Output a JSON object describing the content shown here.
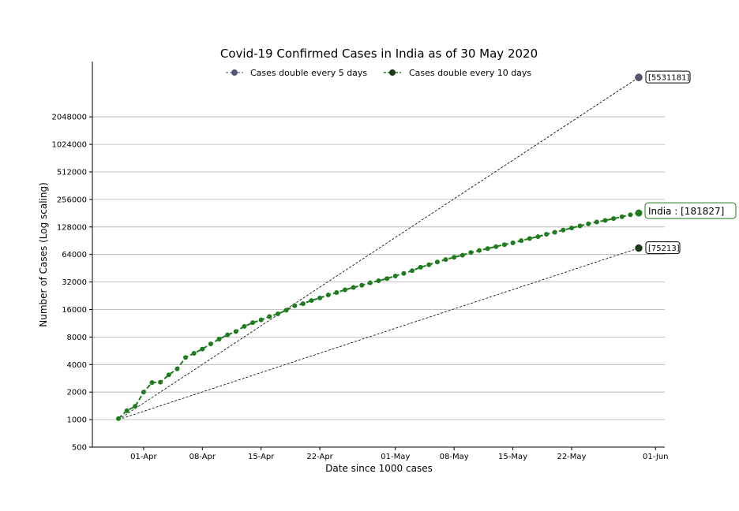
{
  "chart_data": {
    "type": "line",
    "title": "Covid-19 Confirmed Cases in India as of 30 May 2020",
    "xlabel": "Date since 1000 cases",
    "ylabel": "Number of Cases (Log scaling)",
    "y_scale": "log2",
    "ylim": [
      500,
      5531181
    ],
    "xlim": [
      "2020-03-24",
      "2020-06-01"
    ],
    "yticks": [
      "500",
      "1000",
      "2000",
      "4000",
      "8000",
      "16000",
      "32000",
      "64000",
      "128000",
      "256000",
      "512000",
      "1024000",
      "2048000"
    ],
    "xticks": [
      {
        "date": "2020-04-01",
        "label": "01-Apr"
      },
      {
        "date": "2020-04-08",
        "label": "08-Apr"
      },
      {
        "date": "2020-04-15",
        "label": "15-Apr"
      },
      {
        "date": "2020-04-22",
        "label": "22-Apr"
      },
      {
        "date": "2020-05-01",
        "label": "01-May"
      },
      {
        "date": "2020-05-08",
        "label": "08-May"
      },
      {
        "date": "2020-05-15",
        "label": "15-May"
      },
      {
        "date": "2020-05-22",
        "label": "22-May"
      },
      {
        "date": "2020-06-01",
        "label": "01-Jun"
      }
    ],
    "grid": "horizontal",
    "legend_position": "top-center",
    "series": [
      {
        "name": "Cases double every 5 days",
        "style": "dashed-reference",
        "color": "#555577",
        "points": [
          {
            "x": "2020-03-29",
            "y": 1000
          },
          {
            "x": "2020-05-30",
            "y": 5531181
          }
        ],
        "end_label": "[5531181]"
      },
      {
        "name": "Cases double every 10 days",
        "style": "dashed-reference",
        "color": "#1a3a1a",
        "points": [
          {
            "x": "2020-03-29",
            "y": 1000
          },
          {
            "x": "2020-05-30",
            "y": 75213
          }
        ],
        "end_label": "[75213]"
      },
      {
        "name": "India",
        "style": "dashed-markers",
        "color": "#1e7b1e",
        "end_label": "India :  [181827]",
        "x": [
          "2020-03-29",
          "2020-03-30",
          "2020-03-31",
          "2020-04-01",
          "2020-04-02",
          "2020-04-03",
          "2020-04-04",
          "2020-04-05",
          "2020-04-06",
          "2020-04-07",
          "2020-04-08",
          "2020-04-09",
          "2020-04-10",
          "2020-04-11",
          "2020-04-12",
          "2020-04-13",
          "2020-04-14",
          "2020-04-15",
          "2020-04-16",
          "2020-04-17",
          "2020-04-18",
          "2020-04-19",
          "2020-04-20",
          "2020-04-21",
          "2020-04-22",
          "2020-04-23",
          "2020-04-24",
          "2020-04-25",
          "2020-04-26",
          "2020-04-27",
          "2020-04-28",
          "2020-04-29",
          "2020-04-30",
          "2020-05-01",
          "2020-05-02",
          "2020-05-03",
          "2020-05-04",
          "2020-05-05",
          "2020-05-06",
          "2020-05-07",
          "2020-05-08",
          "2020-05-09",
          "2020-05-10",
          "2020-05-11",
          "2020-05-12",
          "2020-05-13",
          "2020-05-14",
          "2020-05-15",
          "2020-05-16",
          "2020-05-17",
          "2020-05-18",
          "2020-05-19",
          "2020-05-20",
          "2020-05-21",
          "2020-05-22",
          "2020-05-23",
          "2020-05-24",
          "2020-05-25",
          "2020-05-26",
          "2020-05-27",
          "2020-05-28",
          "2020-05-29",
          "2020-05-30"
        ],
        "y": [
          1024,
          1251,
          1397,
          1998,
          2543,
          2567,
          3082,
          3588,
          4778,
          5311,
          5916,
          6725,
          7598,
          8446,
          9205,
          10453,
          11487,
          12322,
          13430,
          14352,
          15722,
          17615,
          18539,
          20080,
          21370,
          23077,
          24530,
          26283,
          27890,
          29451,
          31324,
          33062,
          34863,
          37257,
          39699,
          42505,
          46437,
          49400,
          52987,
          56351,
          59695,
          62808,
          67161,
          70768,
          74292,
          78055,
          81997,
          85784,
          90648,
          95698,
          100328,
          106475,
          112028,
          118226,
          124794,
          131423,
          138536,
          144950,
          150793,
          158086,
          165386,
          173763,
          181827
        ]
      }
    ]
  }
}
